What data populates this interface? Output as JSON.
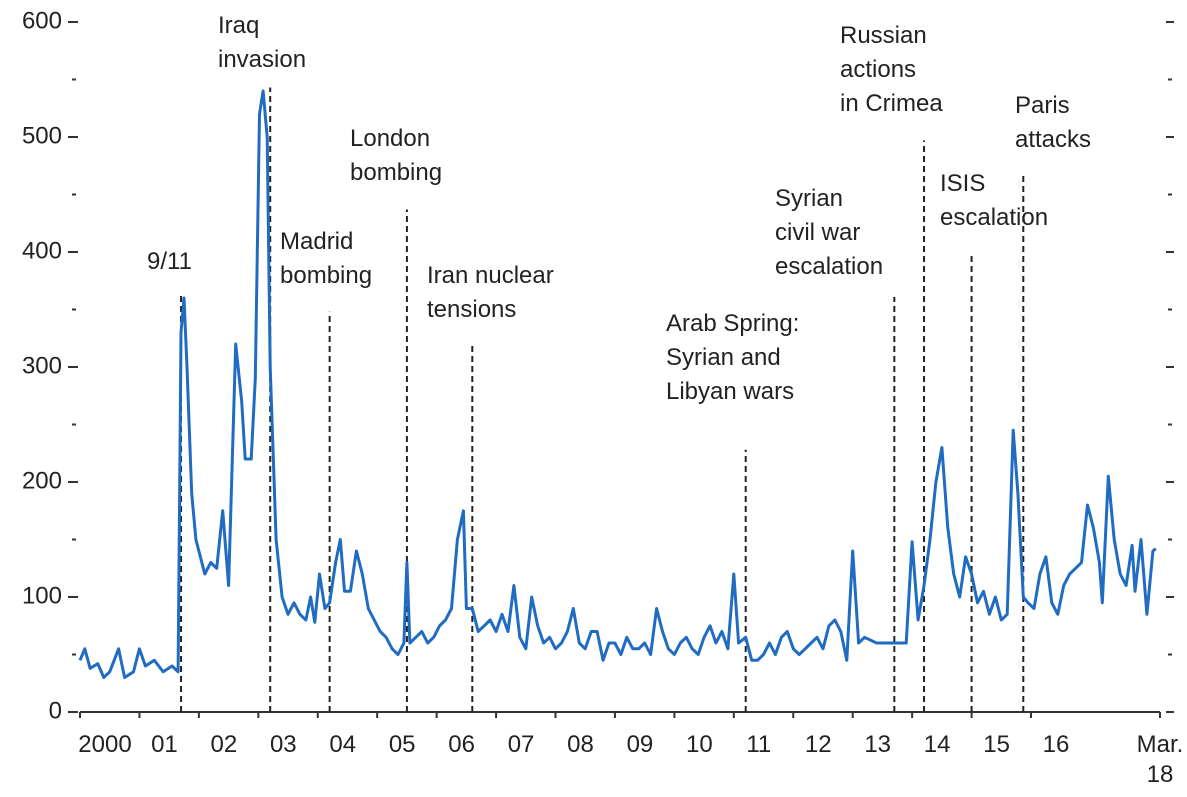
{
  "chart_data": {
    "type": "line",
    "color": "#1f6cc2",
    "xlim": [
      2000,
      2018.17
    ],
    "ylim": [
      0,
      600
    ],
    "yticks": [
      0,
      100,
      200,
      300,
      400,
      500,
      600
    ],
    "xticks": [
      {
        "value": 2000,
        "label": "2000"
      },
      {
        "value": 2001,
        "label": "01"
      },
      {
        "value": 2002,
        "label": "02"
      },
      {
        "value": 2003,
        "label": "03"
      },
      {
        "value": 2004,
        "label": "04"
      },
      {
        "value": 2005,
        "label": "05"
      },
      {
        "value": 2006,
        "label": "06"
      },
      {
        "value": 2007,
        "label": "07"
      },
      {
        "value": 2008,
        "label": "08"
      },
      {
        "value": 2009,
        "label": "09"
      },
      {
        "value": 2010,
        "label": "10"
      },
      {
        "value": 2011,
        "label": "11"
      },
      {
        "value": 2012,
        "label": "12"
      },
      {
        "value": 2013,
        "label": "13"
      },
      {
        "value": 2014,
        "label": "14"
      },
      {
        "value": 2015,
        "label": "15"
      },
      {
        "value": 2016,
        "label": "16"
      },
      {
        "value": 2018.17,
        "label": "Mar.\n18"
      }
    ],
    "x": [
      2000.0,
      2000.08,
      2000.17,
      2000.3,
      2000.4,
      2000.5,
      2000.65,
      2000.75,
      2000.9,
      2001.0,
      2001.1,
      2001.25,
      2001.4,
      2001.55,
      2001.65,
      2001.7,
      2001.75,
      2001.8,
      2001.88,
      2001.95,
      2002.1,
      2002.2,
      2002.3,
      2002.4,
      2002.5,
      2002.62,
      2002.72,
      2002.78,
      2002.88,
      2002.95,
      2003.02,
      2003.08,
      2003.15,
      2003.2,
      2003.3,
      2003.4,
      2003.5,
      2003.6,
      2003.7,
      2003.8,
      2003.88,
      2003.95,
      2004.03,
      2004.12,
      2004.2,
      2004.3,
      2004.38,
      2004.45,
      2004.55,
      2004.65,
      2004.75,
      2004.85,
      2004.95,
      2005.05,
      2005.15,
      2005.25,
      2005.35,
      2005.45,
      2005.5,
      2005.55,
      2005.65,
      2005.75,
      2005.85,
      2005.95,
      2006.05,
      2006.15,
      2006.25,
      2006.35,
      2006.45,
      2006.5,
      2006.6,
      2006.7,
      2006.8,
      2006.9,
      2007.0,
      2007.1,
      2007.2,
      2007.3,
      2007.4,
      2007.5,
      2007.6,
      2007.7,
      2007.8,
      2007.9,
      2008.0,
      2008.1,
      2008.2,
      2008.3,
      2008.4,
      2008.5,
      2008.6,
      2008.7,
      2008.8,
      2008.9,
      2009.0,
      2009.1,
      2009.2,
      2009.3,
      2009.4,
      2009.5,
      2009.6,
      2009.7,
      2009.8,
      2009.9,
      2010.0,
      2010.1,
      2010.2,
      2010.3,
      2010.4,
      2010.5,
      2010.6,
      2010.7,
      2010.8,
      2010.9,
      2011.0,
      2011.08,
      2011.2,
      2011.3,
      2011.4,
      2011.5,
      2011.6,
      2011.7,
      2011.8,
      2011.9,
      2012.0,
      2012.1,
      2012.2,
      2012.3,
      2012.4,
      2012.5,
      2012.6,
      2012.7,
      2012.8,
      2012.9,
      2013.0,
      2013.1,
      2013.2,
      2013.4,
      2013.6,
      2013.8,
      2013.9,
      2014.0,
      2014.1,
      2014.2,
      2014.3,
      2014.4,
      2014.5,
      2014.6,
      2014.7,
      2014.8,
      2014.9,
      2015.0,
      2015.1,
      2015.2,
      2015.3,
      2015.4,
      2015.5,
      2015.6,
      2015.7,
      2015.78,
      2015.87,
      2015.95,
      2016.05,
      2016.15,
      2016.25,
      2016.35,
      2016.45,
      2016.55,
      2016.65,
      2016.75,
      2016.85,
      2016.95,
      2017.05,
      2017.15,
      2017.2,
      2017.3,
      2017.4,
      2017.5,
      2017.6,
      2017.7,
      2017.75,
      2017.85,
      2017.95,
      2018.05,
      2018.1
    ],
    "values": [
      45,
      55,
      38,
      42,
      30,
      35,
      55,
      30,
      35,
      55,
      40,
      45,
      35,
      40,
      35,
      330,
      360,
      300,
      190,
      150,
      120,
      130,
      125,
      175,
      110,
      320,
      270,
      220,
      220,
      290,
      520,
      540,
      500,
      300,
      150,
      100,
      85,
      95,
      85,
      80,
      100,
      78,
      120,
      90,
      95,
      130,
      150,
      105,
      105,
      140,
      120,
      90,
      80,
      70,
      65,
      55,
      50,
      60,
      130,
      60,
      65,
      70,
      60,
      65,
      75,
      80,
      90,
      150,
      175,
      90,
      90,
      70,
      75,
      80,
      70,
      85,
      70,
      110,
      65,
      55,
      100,
      75,
      60,
      65,
      55,
      60,
      70,
      90,
      60,
      55,
      70,
      70,
      45,
      60,
      60,
      50,
      65,
      55,
      55,
      60,
      50,
      90,
      70,
      55,
      50,
      60,
      65,
      55,
      50,
      65,
      75,
      60,
      70,
      55,
      120,
      60,
      65,
      45,
      45,
      50,
      60,
      50,
      65,
      70,
      55,
      50,
      55,
      60,
      65,
      55,
      75,
      80,
      70,
      45,
      140,
      60,
      65,
      60,
      60,
      60,
      60,
      148,
      80,
      110,
      150,
      200,
      230,
      160,
      120,
      100,
      135,
      120,
      95,
      105,
      85,
      100,
      80,
      85,
      245,
      190,
      100,
      95,
      90,
      120,
      135,
      95,
      85,
      110,
      120,
      125,
      130,
      180,
      160,
      130,
      95,
      205,
      150,
      120,
      110,
      145,
      105,
      150,
      85,
      140,
      142
    ],
    "annotations": [
      {
        "x": 2001.7,
        "text": "9/11"
      },
      {
        "x": 2003.2,
        "text": "Iraq\ninvasion"
      },
      {
        "x": 2004.2,
        "text": "Madrid\nbombing"
      },
      {
        "x": 2005.5,
        "text": "London\nbombing"
      },
      {
        "x": 2006.6,
        "text": "Iran nuclear\ntensions"
      },
      {
        "x": 2011.2,
        "text": "Arab Spring:\nSyrian and\nLibyan wars"
      },
      {
        "x": 2013.7,
        "text": "Syrian\ncivil war\nescalation"
      },
      {
        "x": 2014.2,
        "text": "Russian\nactions\nin Crimea"
      },
      {
        "x": 2015.0,
        "text": "ISIS\nescalation"
      },
      {
        "x": 2015.87,
        "text": "Paris\nattacks"
      }
    ]
  }
}
